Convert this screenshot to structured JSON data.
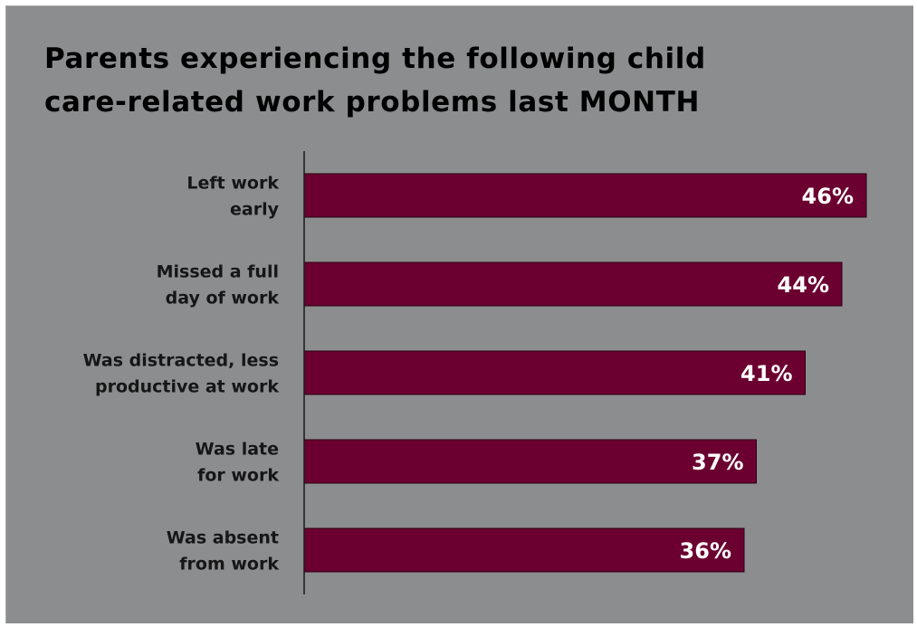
{
  "chart_data": {
    "type": "bar",
    "orientation": "horizontal",
    "title_lines": [
      "Parents experiencing the following child",
      "care-related work problems last MONTH"
    ],
    "categories": [
      [
        "Left work",
        "early"
      ],
      [
        "Missed a full",
        "day of work"
      ],
      [
        "Was distracted, less",
        "productive at work"
      ],
      [
        "Was late",
        "for work"
      ],
      [
        "Was absent",
        "from work"
      ]
    ],
    "values": [
      46,
      44,
      41,
      37,
      36
    ],
    "value_labels": [
      "46%",
      "44%",
      "41%",
      "37%",
      "36%"
    ],
    "unit": "%",
    "grid": false,
    "legend": "none"
  },
  "colors": {
    "background": "#8c8d8f",
    "bar": "#6b0030",
    "bar_border": "#2a0012",
    "value_text": "#ffffff",
    "title_text": "#000000",
    "axis": "#1a1a1a"
  }
}
